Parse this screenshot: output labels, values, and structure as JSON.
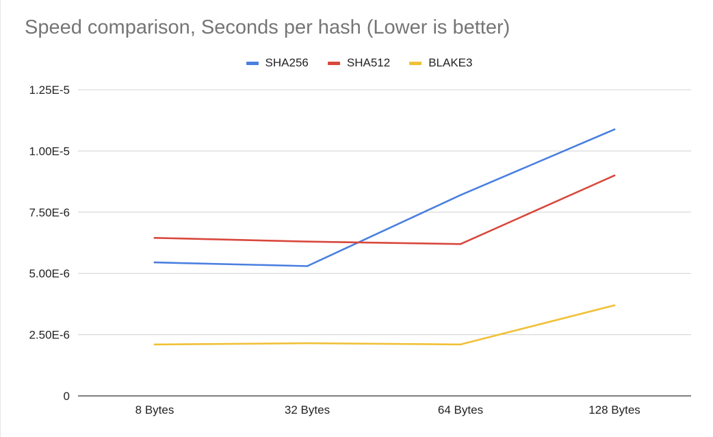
{
  "chart_data": {
    "type": "line",
    "title": "Speed comparison, Seconds per hash (Lower is better)",
    "xlabel": "",
    "ylabel": "",
    "categories": [
      "8 Bytes",
      "32 Bytes",
      "64 Bytes",
      "128 Bytes"
    ],
    "ylim": [
      0,
      1.25e-05
    ],
    "yticks": [
      0,
      2.5e-06,
      5e-06,
      7.5e-06,
      1e-05,
      1.25e-05
    ],
    "ytick_labels": [
      "0",
      "2.50E-6",
      "5.00E-6",
      "7.50E-6",
      "1.00E-5",
      "1.25E-5"
    ],
    "grid": true,
    "legend_position": "top",
    "series": [
      {
        "name": "SHA256",
        "color": "#4a7fe0",
        "values": [
          5.45e-06,
          5.3e-06,
          8.2e-06,
          1.088e-05
        ]
      },
      {
        "name": "SHA512",
        "color": "#d9473b",
        "values": [
          6.45e-06,
          6.3e-06,
          6.2e-06,
          9e-06
        ]
      },
      {
        "name": "BLAKE3",
        "color": "#f0c037",
        "values": [
          2.1e-06,
          2.15e-06,
          2.1e-06,
          3.7e-06
        ]
      }
    ]
  }
}
